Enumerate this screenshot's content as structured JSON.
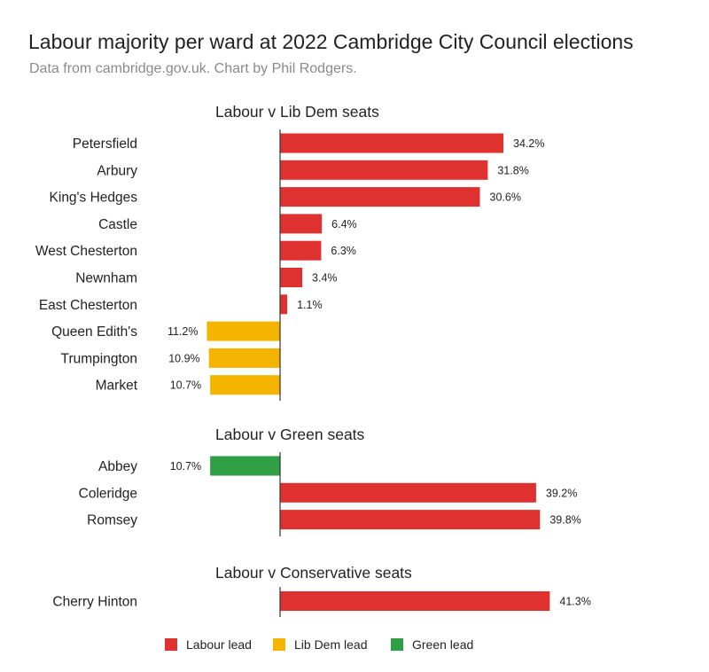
{
  "header": {
    "title": "Labour majority per ward at 2022 Cambridge City Council elections",
    "subtitle": "Data from cambridge.gov.uk. Chart by Phil Rodgers."
  },
  "colors": {
    "labour": "#e03131",
    "libdem": "#f5b400",
    "green": "#2f9e44",
    "axis": "#333333"
  },
  "chart_data": {
    "type": "bar",
    "orientation": "horizontal",
    "value_unit": "%",
    "grid": false,
    "legend_placement": "bottom",
    "legend": [
      {
        "label": "Labour lead",
        "party": "labour"
      },
      {
        "label": "Lib Dem lead",
        "party": "libdem"
      },
      {
        "label": "Green lead",
        "party": "green"
      }
    ],
    "groups": [
      {
        "title": "Labour v Lib Dem seats",
        "bars": [
          {
            "ward": "Petersfield",
            "value": 34.2,
            "label": "34.2%",
            "lead": "labour"
          },
          {
            "ward": "Arbury",
            "value": 31.8,
            "label": "31.8%",
            "lead": "labour"
          },
          {
            "ward": "King's Hedges",
            "value": 30.6,
            "label": "30.6%",
            "lead": "labour"
          },
          {
            "ward": "Castle",
            "value": 6.4,
            "label": "6.4%",
            "lead": "labour"
          },
          {
            "ward": "West Chesterton",
            "value": 6.3,
            "label": "6.3%",
            "lead": "labour"
          },
          {
            "ward": "Newnham",
            "value": 3.4,
            "label": "3.4%",
            "lead": "labour"
          },
          {
            "ward": "East Chesterton",
            "value": 1.1,
            "label": "1.1%",
            "lead": "labour"
          },
          {
            "ward": "Queen Edith's",
            "value": -11.2,
            "label": "11.2%",
            "lead": "libdem"
          },
          {
            "ward": "Trumpington",
            "value": -10.9,
            "label": "10.9%",
            "lead": "libdem"
          },
          {
            "ward": "Market",
            "value": -10.7,
            "label": "10.7%",
            "lead": "libdem"
          }
        ]
      },
      {
        "title": "Labour v Green seats",
        "bars": [
          {
            "ward": "Abbey",
            "value": -10.7,
            "label": "10.7%",
            "lead": "green"
          },
          {
            "ward": "Coleridge",
            "value": 39.2,
            "label": "39.2%",
            "lead": "labour"
          },
          {
            "ward": "Romsey",
            "value": 39.8,
            "label": "39.8%",
            "lead": "labour"
          }
        ]
      },
      {
        "title": "Labour v Conservative seats",
        "bars": [
          {
            "ward": "Cherry Hinton",
            "value": 41.3,
            "label": "41.3%",
            "lead": "labour"
          }
        ]
      }
    ]
  }
}
